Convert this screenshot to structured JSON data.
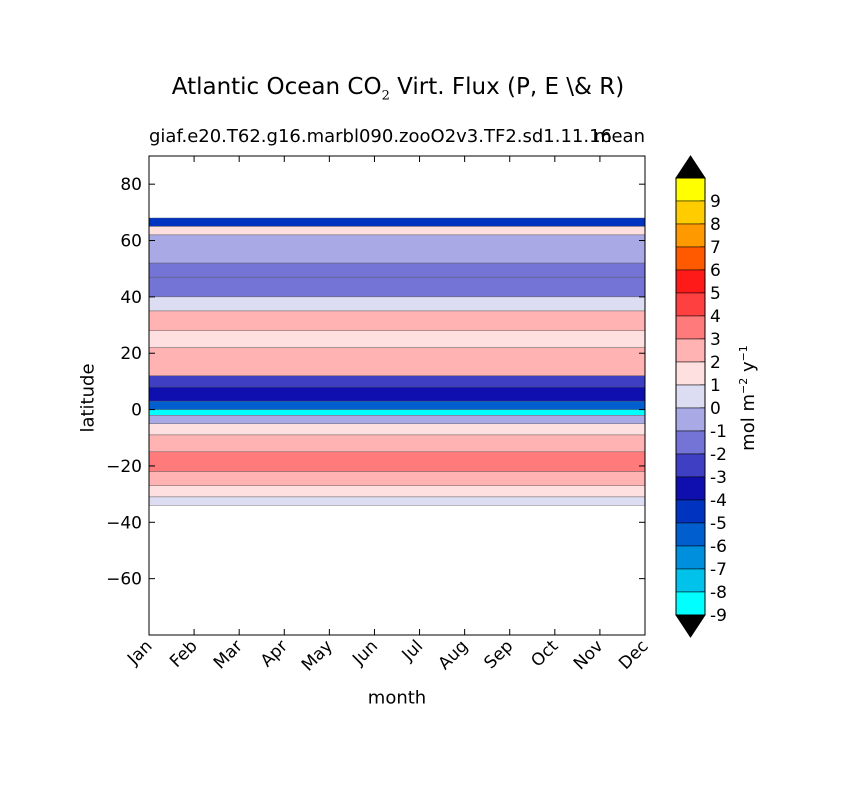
{
  "chart_data": {
    "type": "heatmap",
    "title_main": "Atlantic Ocean CO",
    "title_sub": "2",
    "title_rest": " Virt. Flux (P, E \\& R)",
    "subtitle_left": "giaf.e20.T62.g16.marbl090.zooO2v3.TF2.sd1.11.16",
    "subtitle_right": "mean",
    "xlabel": "month",
    "ylabel": "latitude",
    "colorbar_label": "mol m",
    "colorbar_label_exp1": "−2",
    "colorbar_label_mid": " y",
    "colorbar_label_exp2": "−1",
    "x_categories": [
      "Jan",
      "Feb",
      "Mar",
      "Apr",
      "May",
      "Jun",
      "Jul",
      "Aug",
      "Sep",
      "Oct",
      "Nov",
      "Dec"
    ],
    "ylim": [
      -80,
      90
    ],
    "yticks": [
      80,
      60,
      40,
      20,
      0,
      -20,
      -40,
      -60
    ],
    "ytick_labels": [
      "80",
      "60",
      "40",
      "20",
      "0",
      "−20",
      "−40",
      "−60"
    ],
    "colorbar_levels": [
      "9",
      "8",
      "7",
      "6",
      "5",
      "4",
      "3",
      "2",
      "1",
      "0",
      "-1",
      "-2",
      "-3",
      "-4",
      "-5",
      "-6",
      "-7",
      "-8",
      "-9"
    ],
    "colorbar_colors": [
      "#ffff00",
      "#ffcc00",
      "#ff9900",
      "#ff5a00",
      "#ff1a1a",
      "#ff4040",
      "#ff7a7a",
      "#ffb3b3",
      "#ffe0e0",
      "#dcdcf2",
      "#a9a9e6",
      "#7474d6",
      "#3f3fc4",
      "#0f0fb0",
      "#0033bf",
      "#005ecf",
      "#008fdd",
      "#00c2ea",
      "#00ffff"
    ],
    "colorbar_extend_colors": [
      "#000000",
      "#000000"
    ],
    "data_extent_lat": [
      -34,
      68
    ],
    "bands": [
      {
        "lat": [
          65,
          68
        ],
        "value": -5
      },
      {
        "lat": [
          62,
          65
        ],
        "value": 1
      },
      {
        "lat": [
          52,
          62
        ],
        "value": -1
      },
      {
        "lat": [
          47,
          52
        ],
        "value": -2
      },
      {
        "lat": [
          40,
          47
        ],
        "value": -2
      },
      {
        "lat": [
          35,
          40
        ],
        "value": 0
      },
      {
        "lat": [
          28,
          35
        ],
        "value": 2
      },
      {
        "lat": [
          22,
          28
        ],
        "value": 1
      },
      {
        "lat": [
          12,
          22
        ],
        "value": 2
      },
      {
        "lat": [
          8,
          12
        ],
        "value": -3
      },
      {
        "lat": [
          3,
          8
        ],
        "value": -4
      },
      {
        "lat": [
          0,
          3
        ],
        "value": -6
      },
      {
        "lat": [
          -2,
          0
        ],
        "value": -9
      },
      {
        "lat": [
          -5,
          -2
        ],
        "value": -1
      },
      {
        "lat": [
          -9,
          -5
        ],
        "value": 1
      },
      {
        "lat": [
          -15,
          -9
        ],
        "value": 2
      },
      {
        "lat": [
          -22,
          -15
        ],
        "value": 3
      },
      {
        "lat": [
          -27,
          -22
        ],
        "value": 2
      },
      {
        "lat": [
          -31,
          -27
        ],
        "value": 1
      },
      {
        "lat": [
          -34,
          -31
        ],
        "value": 0
      }
    ]
  }
}
